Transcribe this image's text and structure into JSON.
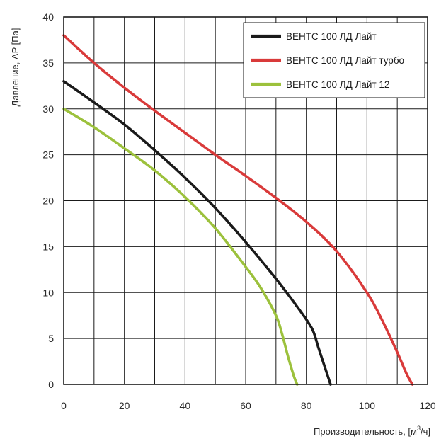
{
  "chart_data": {
    "type": "line",
    "xlabel": "Производительность, [м",
    "xlabel_superscript": "3",
    "xlabel_suffix": "/ч]",
    "ylabel": "Давление, ΔP [Па]",
    "xlim": [
      0,
      120
    ],
    "ylim": [
      0,
      40
    ],
    "x_ticks": [
      0,
      20,
      40,
      60,
      80,
      100,
      120
    ],
    "y_ticks": [
      0,
      5,
      10,
      15,
      20,
      25,
      30,
      35,
      40
    ],
    "x_grid_step": 10,
    "y_grid_step": 5,
    "grid": true,
    "legend_position": "top-right",
    "series": [
      {
        "name": "ВЕНТС 100 ЛД Лайт",
        "color": "#1a1a1a",
        "points": [
          [
            0,
            33
          ],
          [
            10,
            30.7
          ],
          [
            20,
            28.3
          ],
          [
            30,
            25.5
          ],
          [
            40,
            22.5
          ],
          [
            50,
            19.2
          ],
          [
            60,
            15.5
          ],
          [
            70,
            11.5
          ],
          [
            78,
            8
          ],
          [
            82,
            6
          ],
          [
            84,
            4
          ],
          [
            86,
            2
          ],
          [
            87,
            1
          ],
          [
            88,
            0
          ]
        ]
      },
      {
        "name": "ВЕНТС 100 ЛД Лайт турбо",
        "color": "#d93a3a",
        "points": [
          [
            0,
            38
          ],
          [
            10,
            35
          ],
          [
            20,
            32.3
          ],
          [
            30,
            29.8
          ],
          [
            40,
            27.4
          ],
          [
            50,
            25
          ],
          [
            60,
            22.7
          ],
          [
            70,
            20.3
          ],
          [
            80,
            17.7
          ],
          [
            90,
            14.5
          ],
          [
            100,
            10
          ],
          [
            105,
            7
          ],
          [
            110,
            3.5
          ],
          [
            113,
            1.2
          ],
          [
            115,
            0
          ]
        ]
      },
      {
        "name": "ВЕНТС 100 ЛД Лайт 12",
        "color": "#9cc13c",
        "points": [
          [
            0,
            30
          ],
          [
            10,
            28
          ],
          [
            20,
            25.7
          ],
          [
            30,
            23.3
          ],
          [
            40,
            20.4
          ],
          [
            50,
            17
          ],
          [
            60,
            12.8
          ],
          [
            65,
            10.5
          ],
          [
            70,
            7.5
          ],
          [
            72,
            5.5
          ],
          [
            74,
            3
          ],
          [
            76,
            0.8
          ],
          [
            77,
            0
          ]
        ]
      }
    ]
  }
}
